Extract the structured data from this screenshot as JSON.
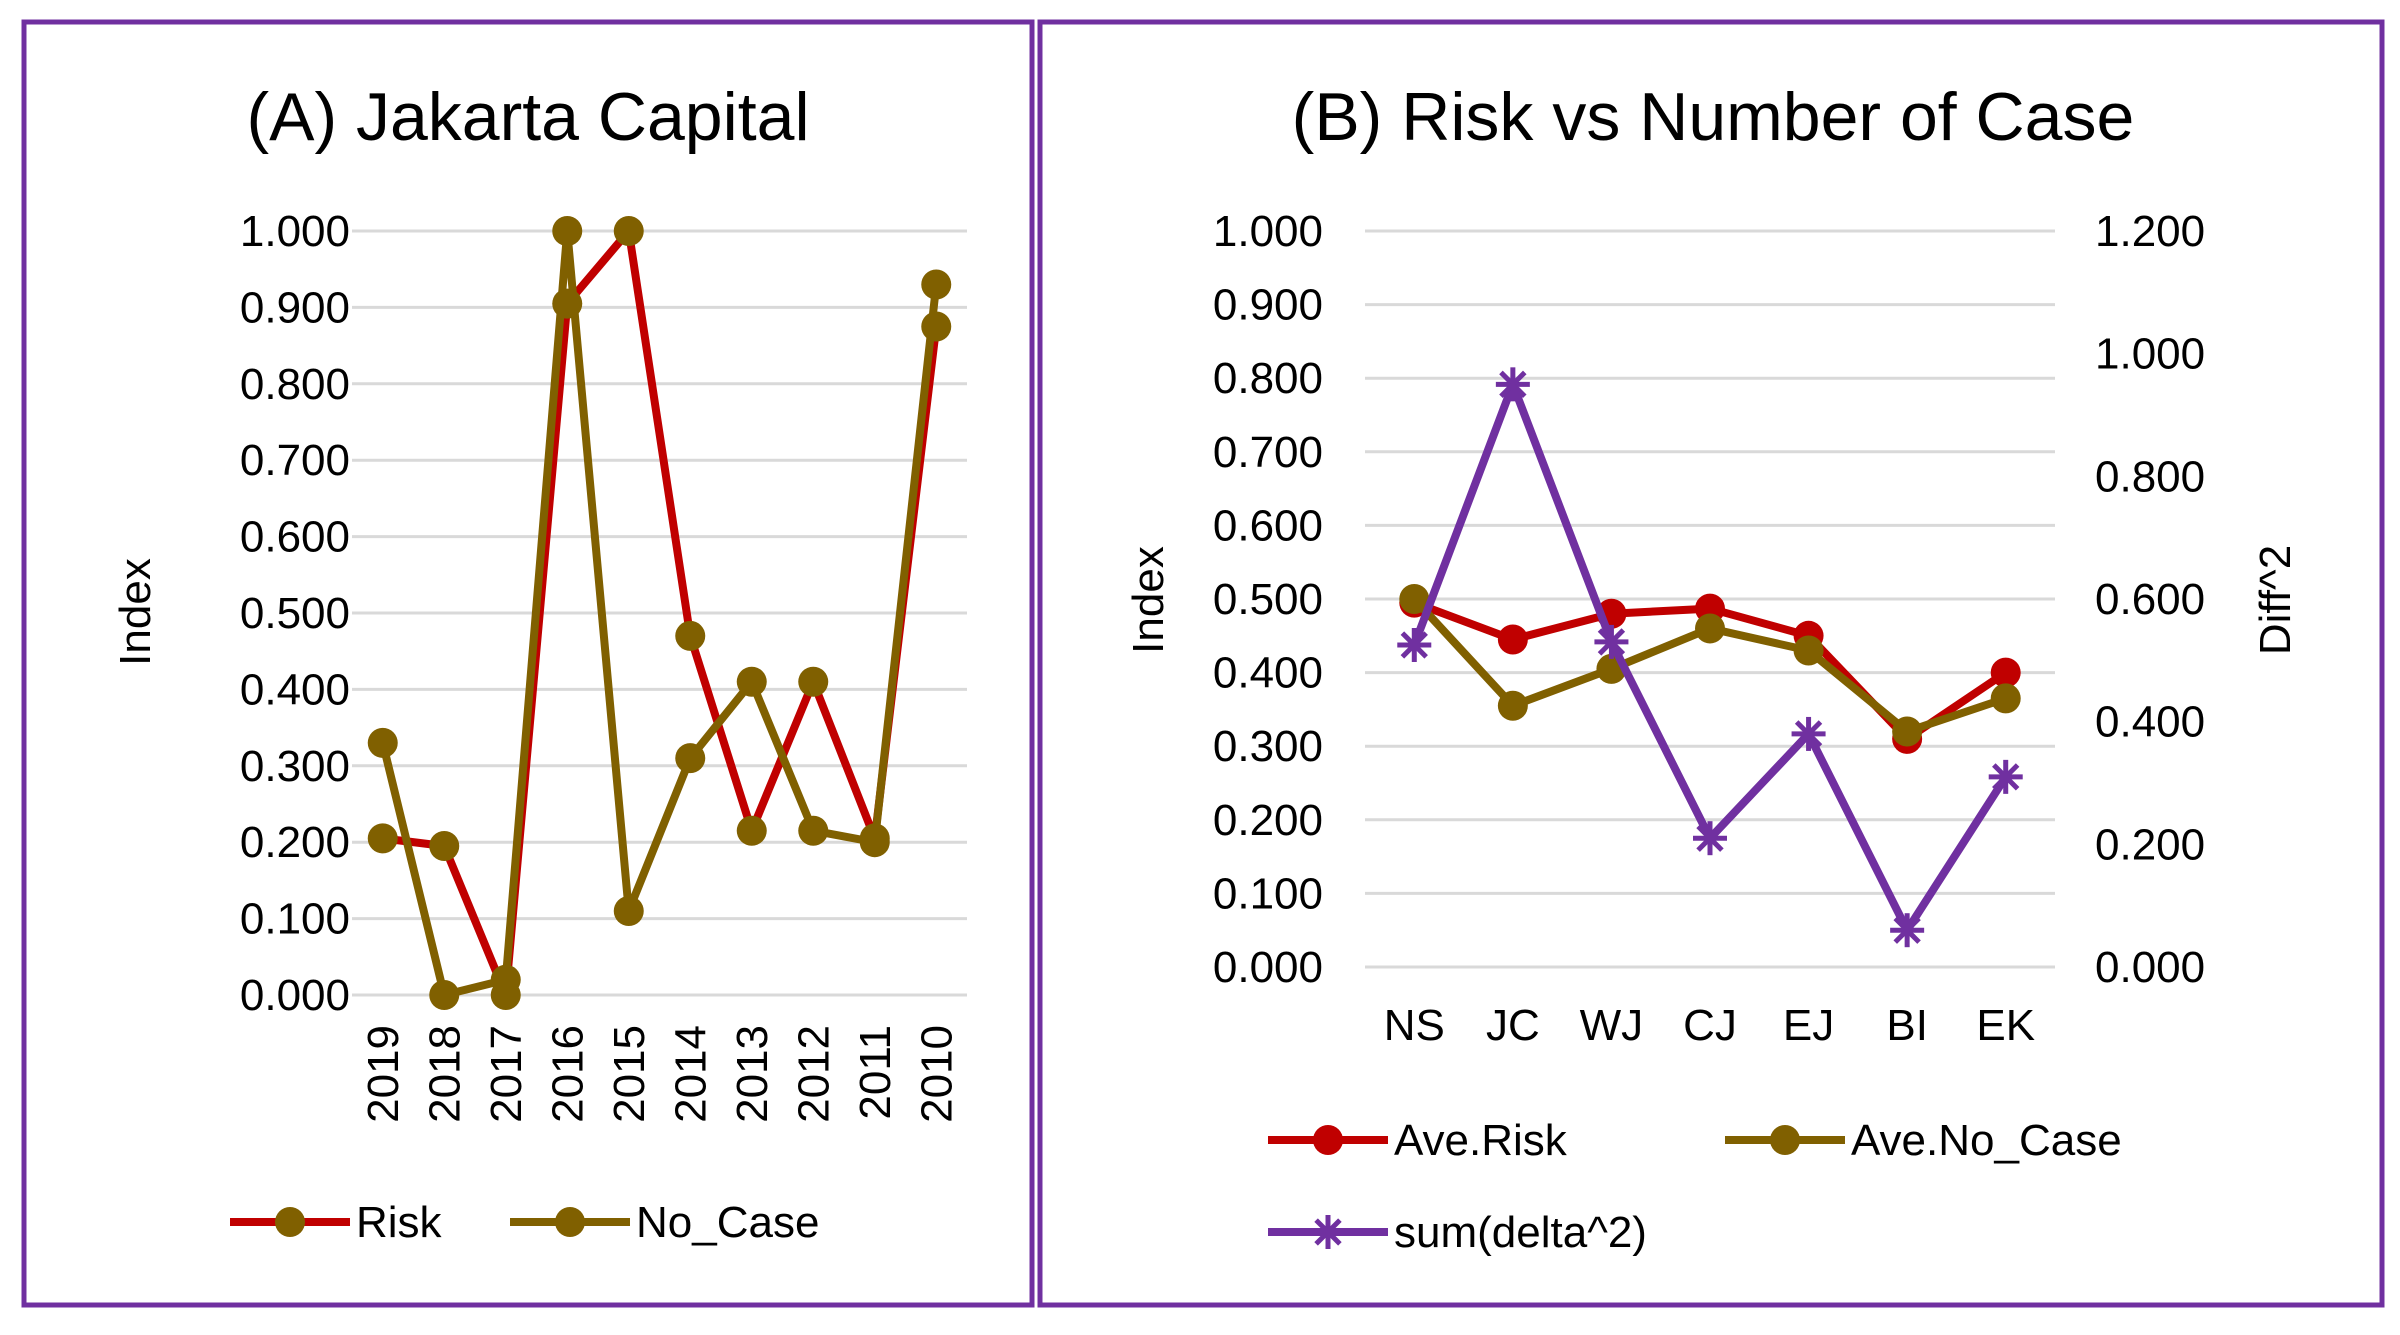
{
  "chart_data": [
    {
      "type": "line",
      "title": "(A) Jakarta Capital",
      "xlabel": "",
      "ylabel": "Index",
      "ylim": [
        0,
        1
      ],
      "yticks": [
        "0.000",
        "0.100",
        "0.200",
        "0.300",
        "0.400",
        "0.500",
        "0.600",
        "0.700",
        "0.800",
        "0.900",
        "1.000"
      ],
      "categories": [
        "2019",
        "2018",
        "2017",
        "2016",
        "2015",
        "2014",
        "2013",
        "2012",
        "2011",
        "2010"
      ],
      "series": [
        {
          "name": "Risk",
          "color": "#c00000",
          "marker": "circle",
          "marker_color": "#806000",
          "values": [
            0.205,
            0.195,
            0.0,
            0.905,
            1.0,
            0.47,
            0.215,
            0.41,
            0.205,
            0.875
          ]
        },
        {
          "name": "No_Case",
          "color": "#806000",
          "marker": "circle",
          "marker_color": "#806000",
          "values": [
            0.33,
            0.0,
            0.02,
            1.0,
            0.11,
            0.31,
            0.41,
            0.215,
            0.2,
            0.93
          ]
        }
      ],
      "legend": [
        {
          "label": "Risk",
          "color": "#c00000",
          "marker_color": "#806000"
        },
        {
          "label": "No_Case",
          "color": "#806000",
          "marker_color": "#806000"
        }
      ]
    },
    {
      "type": "line",
      "title": "(B) Risk vs Number of Case",
      "xlabel": "",
      "ylabel": "Index",
      "y2label": "Diff^2",
      "ylim": [
        0,
        1
      ],
      "y2lim": [
        0,
        1.2
      ],
      "yticks": [
        "0.000",
        "0.100",
        "0.200",
        "0.300",
        "0.400",
        "0.500",
        "0.600",
        "0.700",
        "0.800",
        "0.900",
        "1.000"
      ],
      "y2ticks": [
        "0.000",
        "0.200",
        "0.400",
        "0.600",
        "0.800",
        "1.000",
        "1.200"
      ],
      "categories": [
        "NS",
        "JC",
        "WJ",
        "CJ",
        "EJ",
        "BI",
        "EK"
      ],
      "series": [
        {
          "name": "Ave.Risk",
          "axis": "left",
          "color": "#c00000",
          "marker": "circle",
          "marker_color": "#c00000",
          "values": [
            0.495,
            0.445,
            0.48,
            0.487,
            0.45,
            0.31,
            0.4
          ]
        },
        {
          "name": "Ave.No_Case",
          "axis": "left",
          "color": "#806000",
          "marker": "circle",
          "marker_color": "#806000",
          "values": [
            0.5,
            0.355,
            0.405,
            0.46,
            0.43,
            0.32,
            0.365
          ]
        },
        {
          "name": "sum(delta^2)",
          "axis": "right",
          "color": "#7030a0",
          "marker": "star",
          "marker_color": "#7030a0",
          "values": [
            0.525,
            0.95,
            0.53,
            0.21,
            0.38,
            0.06,
            0.31
          ]
        }
      ],
      "legend": [
        {
          "label": "Ave.Risk",
          "color": "#c00000",
          "marker_color": "#c00000",
          "marker": "circle"
        },
        {
          "label": "Ave.No_Case",
          "color": "#806000",
          "marker_color": "#806000",
          "marker": "circle"
        },
        {
          "label": "sum(delta^2)",
          "color": "#7030a0",
          "marker_color": "#7030a0",
          "marker": "star"
        }
      ]
    }
  ]
}
